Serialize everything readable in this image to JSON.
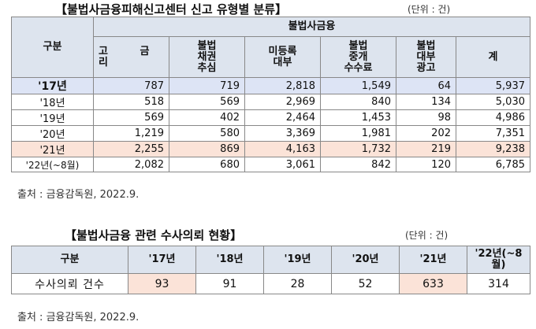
{
  "table1": {
    "title": "【불법사금융피해신고센터 신고 유형별 분류】",
    "unit": "(단위 : 건)",
    "header_group": "구분",
    "header_super": "불법사금융",
    "columns": [
      "고  금  리",
      "불법\n채권\n추심",
      "미등록\n대부",
      "불법\n중개\n수수료",
      "불법\n대부\n광고",
      "계"
    ],
    "rows": [
      {
        "year": "'17년",
        "values": [
          "787",
          "719",
          "2,818",
          "1,549",
          "64",
          "5,937"
        ]
      },
      {
        "year": "'18년",
        "values": [
          "518",
          "569",
          "2,969",
          "840",
          "134",
          "5,030"
        ]
      },
      {
        "year": "'19년",
        "values": [
          "569",
          "402",
          "2,464",
          "1,453",
          "98",
          "4,986"
        ]
      },
      {
        "year": "'20년",
        "values": [
          "1,219",
          "580",
          "3,369",
          "1,981",
          "202",
          "7,351"
        ]
      },
      {
        "year": "'21년",
        "values": [
          "2,255",
          "869",
          "4,163",
          "1,732",
          "219",
          "9,238"
        ]
      },
      {
        "year": "'22년(~8월)",
        "values": [
          "2,082",
          "680",
          "3,061",
          "842",
          "120",
          "6,785"
        ]
      }
    ],
    "source": "출처 : 금융감독원, 2022.9."
  },
  "table2": {
    "title": "【불법사금융 관련 수사의뢰 현황】",
    "unit": "(단위 : 건)",
    "header_group": "구분",
    "years": [
      "'17년",
      "'18년",
      "'19년",
      "'20년",
      "'21년",
      "'22년(~8월)"
    ],
    "row_label": "수사의뢰 건수",
    "values": [
      "93",
      "91",
      "28",
      "52",
      "633",
      "314"
    ],
    "source": "출처 : 금융감독원, 2022.9."
  }
}
